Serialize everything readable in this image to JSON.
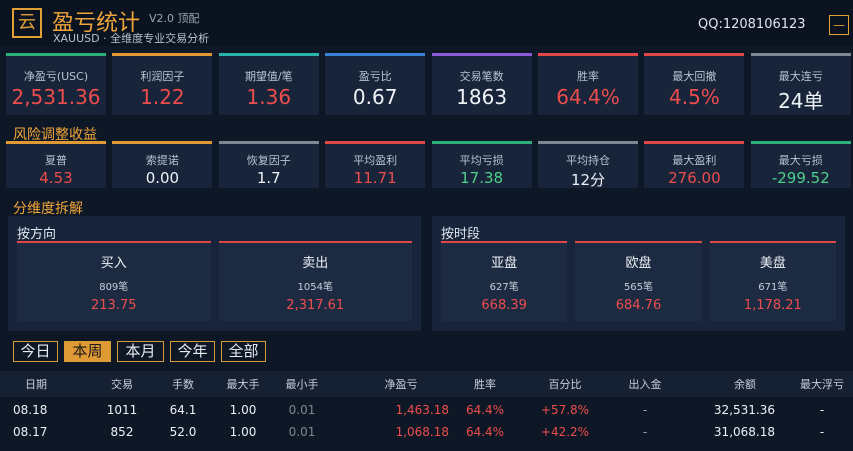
{
  "header": {
    "logo": "云",
    "title": "盈亏统计",
    "version": "V2.0 顶配",
    "subtitle": "XAUUSD · 全维度专业交易分析",
    "qq": "QQ:1208106123",
    "minimize": "—"
  },
  "summary": [
    {
      "label": "净盈亏(USC)",
      "value": "2,531.36"
    },
    {
      "label": "利润因子",
      "value": "1.22"
    },
    {
      "label": "期望值/笔",
      "value": "1.36"
    },
    {
      "label": "盈亏比",
      "value": "0.67"
    },
    {
      "label": "交易笔数",
      "value": "1863"
    },
    {
      "label": "胜率",
      "value": "64.4%"
    },
    {
      "label": "最大回撤",
      "value": "4.5%"
    },
    {
      "label": "最大连亏",
      "value": "24单"
    }
  ],
  "risk_title": "风险调整收益",
  "risk": [
    {
      "label": "夏普",
      "value": "4.53"
    },
    {
      "label": "索提诺",
      "value": "0.00"
    },
    {
      "label": "恢复因子",
      "value": "1.7"
    },
    {
      "label": "平均盈利",
      "value": "11.71"
    },
    {
      "label": "平均亏损",
      "value": "17.38"
    },
    {
      "label": "平均持仓",
      "value": "12分"
    },
    {
      "label": "最大盈利",
      "value": "276.00"
    },
    {
      "label": "最大亏损",
      "value": "-299.52"
    }
  ],
  "breakdown_title": "分维度拆解",
  "panels": [
    {
      "title": "按方向",
      "items": [
        {
          "name": "买入",
          "count": "809笔",
          "value": "213.75"
        },
        {
          "name": "卖出",
          "count": "1054笔",
          "value": "2,317.61"
        }
      ]
    },
    {
      "title": "按时段",
      "items": [
        {
          "name": "亚盘",
          "count": "627笔",
          "value": "668.39"
        },
        {
          "name": "欧盘",
          "count": "565笔",
          "value": "684.76"
        },
        {
          "name": "美盘",
          "count": "671笔",
          "value": "1,178.21"
        }
      ]
    }
  ],
  "tabs": [
    "今日",
    "本周",
    "本月",
    "今年",
    "全部"
  ],
  "table": {
    "columns": [
      "日期",
      "交易",
      "手数",
      "最大手",
      "最小手",
      "净盈亏",
      "胜率",
      "百分比",
      "出入金",
      "余额",
      "最大浮亏"
    ],
    "rows": [
      [
        "08.18",
        "1011",
        "64.1",
        "1.00",
        "0.01",
        "1,463.18",
        "64.4%",
        "+57.8%",
        "-",
        "32,531.36",
        "-"
      ],
      [
        "08.17",
        "852",
        "52.0",
        "1.00",
        "0.01",
        "1,068.18",
        "64.4%",
        "+42.2%",
        "-",
        "31,068.18",
        "-"
      ]
    ]
  }
}
